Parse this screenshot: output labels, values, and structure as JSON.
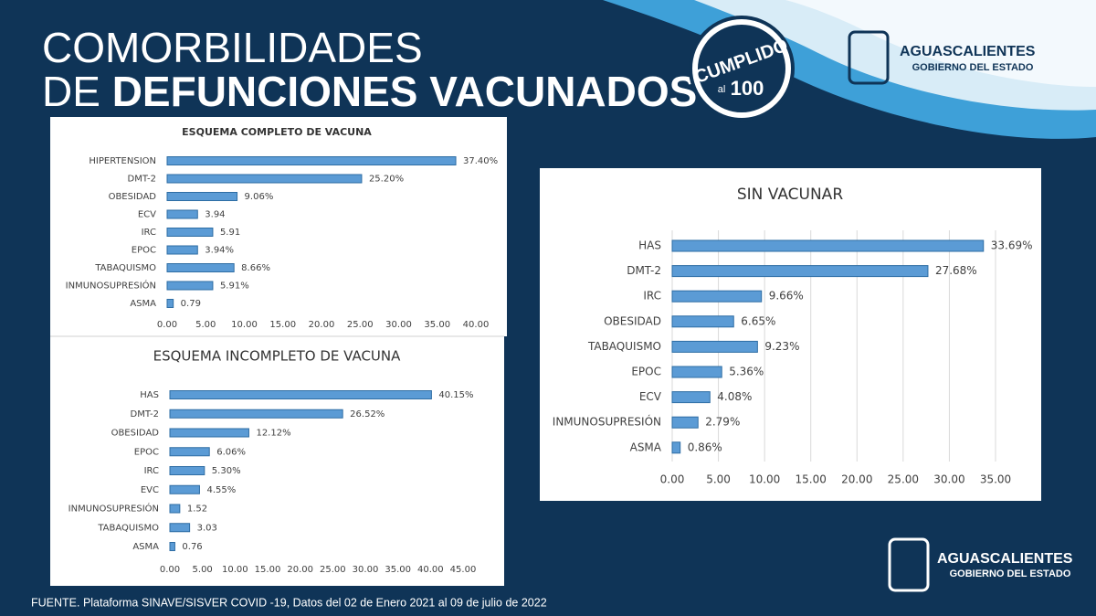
{
  "header": {
    "line1": "COMORBILIDADES",
    "line2_light": "DE",
    "line2_bold": "DEFUNCIONES VACUNADOS"
  },
  "badge": {
    "word": "CUMPLIDO",
    "prefix": "al",
    "number": "100"
  },
  "logo": {
    "name": "AGUASCALIENTES",
    "subtitle": "GOBIERNO DEL ESTADO"
  },
  "source": "FUENTE. Plataforma SINAVE/SISVER COVID -19, Datos del 02 de Enero 2021 al 09 de julio de 2022",
  "chart_data": [
    {
      "type": "bar",
      "orientation": "horizontal",
      "title": "ESQUEMA COMPLETO DE VACUNA",
      "categories": [
        "HIPERTENSION",
        "DMT-2",
        "OBESIDAD",
        "ECV",
        "IRC",
        "EPOC",
        "TABAQUISMO",
        "INMUNOSUPRESIÓN",
        "ASMA"
      ],
      "values": [
        37.4,
        25.2,
        9.06,
        3.94,
        5.91,
        3.94,
        8.66,
        5.91,
        0.79
      ],
      "value_labels": [
        "37.40%",
        "25.20%",
        "9.06%",
        "3.94",
        "5.91",
        "3.94%",
        "8.66%",
        "5.91%",
        "0.79"
      ],
      "color": "#5b9bd5",
      "grid": false,
      "xlim": [
        0,
        40
      ],
      "xticks": [
        {
          "value": 0,
          "label": "0.00"
        },
        {
          "value": 5,
          "label": "5.00"
        },
        {
          "value": 10,
          "label": "10.00"
        },
        {
          "value": 15,
          "label": "15.00"
        },
        {
          "value": 20,
          "label": "20.00"
        },
        {
          "value": 25,
          "label": "25.00"
        },
        {
          "value": 30,
          "label": "30.00"
        },
        {
          "value": 35,
          "label": "35.00"
        },
        {
          "value": 40,
          "label": "40.00"
        }
      ]
    },
    {
      "type": "bar",
      "orientation": "horizontal",
      "title": "ESQUEMA INCOMPLETO DE VACUNA",
      "categories": [
        "HAS",
        "DMT-2",
        "OBESIDAD",
        "EPOC",
        "IRC",
        "EVC",
        "INMUNOSUPRESIÓN",
        "TABAQUISMO",
        "ASMA"
      ],
      "values": [
        40.15,
        26.52,
        12.12,
        6.06,
        5.3,
        4.55,
        1.52,
        3.03,
        0.76
      ],
      "value_labels": [
        "40.15%",
        "26.52%",
        "12.12%",
        "6.06%",
        "5.30%",
        "4.55%",
        "1.52",
        "3.03",
        "0.76"
      ],
      "color": "#5b9bd5",
      "grid": false,
      "xlim": [
        0,
        45
      ],
      "xticks": [
        {
          "value": 0,
          "label": "0.00"
        },
        {
          "value": 5,
          "label": "5.00"
        },
        {
          "value": 10,
          "label": "10.00"
        },
        {
          "value": 15,
          "label": "15.00"
        },
        {
          "value": 20,
          "label": "20.00"
        },
        {
          "value": 25,
          "label": "25.00"
        },
        {
          "value": 30,
          "label": "30.00"
        },
        {
          "value": 35,
          "label": "35.00"
        },
        {
          "value": 40,
          "label": "40.00"
        },
        {
          "value": 45,
          "label": "45.00"
        }
      ]
    },
    {
      "type": "bar",
      "orientation": "horizontal",
      "title": "SIN VACUNAR",
      "categories": [
        "HAS",
        "DMT-2",
        "IRC",
        "OBESIDAD",
        "TABAQUISMO",
        "EPOC",
        "ECV",
        "INMUNOSUPRESIÓN",
        "ASMA"
      ],
      "values": [
        33.69,
        27.68,
        9.66,
        6.65,
        9.23,
        5.36,
        4.08,
        2.79,
        0.86
      ],
      "value_labels": [
        "33.69%",
        "27.68%",
        "9.66%",
        "6.65%",
        "9.23%",
        "5.36%",
        "4.08%",
        "2.79%",
        "0.86%"
      ],
      "color": "#5b9bd5",
      "grid": true,
      "xlim": [
        0,
        35
      ],
      "xticks": [
        {
          "value": 0,
          "label": "0.00"
        },
        {
          "value": 5,
          "label": "5.00"
        },
        {
          "value": 10,
          "label": "10.00"
        },
        {
          "value": 15,
          "label": "15.00"
        },
        {
          "value": 20,
          "label": "20.00"
        },
        {
          "value": 25,
          "label": "25.00"
        },
        {
          "value": 30,
          "label": "30.00"
        },
        {
          "value": 35,
          "label": "35.00"
        }
      ]
    }
  ]
}
